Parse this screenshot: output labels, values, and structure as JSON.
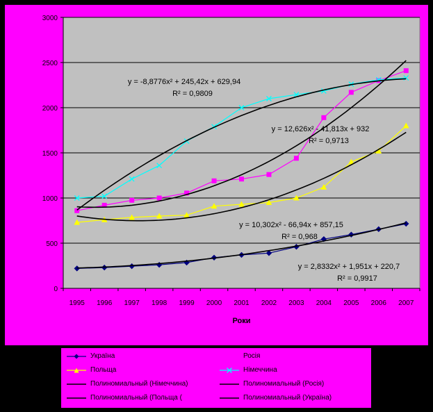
{
  "chart_data": {
    "type": "line",
    "xlabel": "Роки",
    "ylabel": "",
    "categories": [
      "1995",
      "1996",
      "1997",
      "1998",
      "1999",
      "2000",
      "2001",
      "2002",
      "2003",
      "2004",
      "2005",
      "2006",
      "2007"
    ],
    "ylim": [
      0,
      3000
    ],
    "yticks": [
      0,
      500,
      1000,
      1500,
      2000,
      2500,
      3000
    ],
    "grid": true,
    "legend": "bottom",
    "series": [
      {
        "name": "Україна",
        "color": "#000080",
        "marker": "diamond",
        "values": [
          220,
          230,
          245,
          260,
          285,
          340,
          370,
          390,
          460,
          545,
          595,
          655,
          715
        ]
      },
      {
        "name": "Росія",
        "color": "#ff00ff",
        "marker": "square",
        "values": [
          860,
          920,
          975,
          1000,
          1055,
          1190,
          1210,
          1260,
          1440,
          1890,
          2170,
          2300,
          2410
        ]
      },
      {
        "name": "Польща",
        "color": "#ffff00",
        "marker": "triangle",
        "values": [
          730,
          760,
          785,
          800,
          810,
          910,
          930,
          950,
          1000,
          1120,
          1400,
          1520,
          1800
        ]
      },
      {
        "name": "Німеччина",
        "color": "#00ffff",
        "marker": "x",
        "values": [
          1000,
          1020,
          1210,
          1360,
          1630,
          1790,
          2000,
          2100,
          2145,
          2185,
          2260,
          2310,
          2330
        ]
      }
    ],
    "trendlines": [
      {
        "name": "Полиномиальный (Німеччина)",
        "legend_text": "Полиномиальный (Німеччина)",
        "a": -8.8776,
        "b": 245.42,
        "c": 629.94,
        "equation": "y = -8,8776x² + 245,42x + 629,94",
        "r2": "R² = 0,9809"
      },
      {
        "name": "Полиномиальный (Росія)",
        "legend_text": "Полиномиальный (Росія)",
        "a": 12.626,
        "b": -41.813,
        "c": 932,
        "equation": "y = 12,626x² - 41,813x + 932",
        "r2": "R² = 0,9713"
      },
      {
        "name": "Полиномиальный (Польща)",
        "legend_text": "Полиномиальный (Польща (",
        "a": 10.302,
        "b": -66.94,
        "c": 857.15,
        "equation": "y = 10,302x² - 66,94x + 857,15",
        "r2": "R² = 0,968"
      },
      {
        "name": "Полиномиальный (Україна)",
        "legend_text": "Полиномиальный (Україна)",
        "a": 2.8332,
        "b": 1.951,
        "c": 220.7,
        "equation": "y = 2,8332x² + 1,951x + 220,7",
        "r2": "R² = 0,9917"
      }
    ]
  },
  "colors": {
    "page": "#000000",
    "chart_bg": "#ff00ff",
    "plot_bg": "#c0c0c0",
    "trendline": "#000000"
  }
}
